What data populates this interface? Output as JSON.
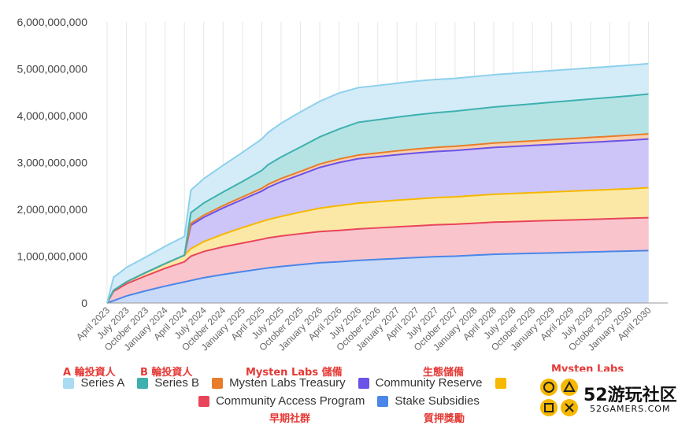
{
  "chart_data": {
    "type": "area",
    "stacked": true,
    "title": "",
    "xlabel": "",
    "ylabel": "",
    "ylim": [
      0,
      6000000000
    ],
    "yticks": [
      "0",
      "1,000,000,000",
      "2,000,000,000",
      "3,000,000,000",
      "4,000,000,000",
      "5,000,000,000",
      "6,000,000,000"
    ],
    "x_tick_labels": [
      "April 2023",
      "July 2023",
      "October 2023",
      "January 2024",
      "April 2024",
      "July 2024",
      "October 2024",
      "January 2025",
      "April 2025",
      "July 2025",
      "October 2025",
      "January 2026",
      "April 2026",
      "July 2026",
      "October 2026",
      "January 2027",
      "April 2027",
      "July 2027",
      "October 2027",
      "January 2028",
      "April 2028",
      "July 2028",
      "October 2028",
      "January 2029",
      "April 2029",
      "July 2029",
      "October 2029",
      "January 2030",
      "April 2030"
    ],
    "x": [
      "2023-04",
      "2023-05",
      "2023-06",
      "2023-07",
      "2023-10",
      "2024-01",
      "2024-04",
      "2024-05",
      "2024-07",
      "2024-10",
      "2025-01",
      "2025-04",
      "2025-05",
      "2025-07",
      "2025-10",
      "2026-01",
      "2026-04",
      "2026-07",
      "2026-10",
      "2027-01",
      "2027-04",
      "2027-07",
      "2027-10",
      "2028-01",
      "2028-04",
      "2028-07",
      "2028-10",
      "2029-01",
      "2029-04",
      "2029-07",
      "2029-10",
      "2030-01",
      "2030-04"
    ],
    "series": [
      {
        "name": "Stake Subsidies",
        "color": "#4a86e8",
        "fill": "#c9daf8",
        "values": [
          0,
          50000000,
          100000000,
          150000000,
          260000000,
          360000000,
          450000000,
          480000000,
          540000000,
          610000000,
          670000000,
          730000000,
          750000000,
          780000000,
          820000000,
          860000000,
          880000000,
          910000000,
          930000000,
          950000000,
          970000000,
          990000000,
          1000000000,
          1020000000,
          1040000000,
          1050000000,
          1060000000,
          1070000000,
          1080000000,
          1090000000,
          1100000000,
          1110000000,
          1120000000
        ]
      },
      {
        "name": "Community Access Program",
        "color": "#e8455a",
        "fill": "#f9c4cc",
        "values": [
          0,
          200000000,
          230000000,
          260000000,
          320000000,
          380000000,
          430000000,
          520000000,
          560000000,
          590000000,
          610000000,
          630000000,
          640000000,
          650000000,
          660000000,
          665000000,
          670000000,
          672000000,
          674000000,
          676000000,
          678000000,
          680000000,
          682000000,
          684000000,
          686000000,
          688000000,
          690000000,
          692000000,
          694000000,
          696000000,
          698000000,
          700000000,
          702000000
        ]
      },
      {
        "name": "",
        "color": "#f6b800",
        "fill": "#fce8a6",
        "values": [
          0,
          20000000,
          30000000,
          40000000,
          70000000,
          100000000,
          140000000,
          160000000,
          210000000,
          270000000,
          330000000,
          380000000,
          390000000,
          420000000,
          460000000,
          500000000,
          530000000,
          550000000,
          560000000,
          570000000,
          575000000,
          580000000,
          585000000,
          590000000,
          595000000,
          600000000,
          605000000,
          610000000,
          615000000,
          620000000,
          625000000,
          630000000,
          640000000
        ]
      },
      {
        "name": "Community Reserve",
        "color": "#6b52e8",
        "fill": "#cdc5f7",
        "values": [
          0,
          0,
          0,
          0,
          0,
          0,
          0,
          500000000,
          520000000,
          560000000,
          600000000,
          650000000,
          690000000,
          740000000,
          800000000,
          870000000,
          920000000,
          950000000,
          960000000,
          970000000,
          980000000,
          985000000,
          990000000,
          995000000,
          1000000000,
          1005000000,
          1010000000,
          1015000000,
          1020000000,
          1025000000,
          1030000000,
          1035000000,
          1040000000
        ]
      },
      {
        "name": "Mysten Labs Treasury",
        "color": "#e87c2a",
        "fill": "#f9cfad",
        "values": [
          0,
          0,
          0,
          0,
          0,
          0,
          0,
          40000000,
          45000000,
          50000000,
          55000000,
          60000000,
          65000000,
          68000000,
          70000000,
          72000000,
          75000000,
          78000000,
          80000000,
          83000000,
          86000000,
          88000000,
          90000000,
          92000000,
          94000000,
          96000000,
          98000000,
          100000000,
          102000000,
          104000000,
          106000000,
          108000000,
          110000000
        ]
      },
      {
        "name": "Series B",
        "color": "#3fb0b0",
        "fill": "#b5e3e3",
        "values": [
          0,
          0,
          0,
          0,
          0,
          0,
          0,
          230000000,
          260000000,
          290000000,
          330000000,
          380000000,
          420000000,
          460000000,
          520000000,
          580000000,
          640000000,
          700000000,
          710000000,
          720000000,
          730000000,
          740000000,
          750000000,
          760000000,
          770000000,
          780000000,
          790000000,
          800000000,
          810000000,
          820000000,
          830000000,
          840000000,
          850000000
        ]
      },
      {
        "name": "Series A",
        "color": "#8dd0ec",
        "fill": "#d3ecf8",
        "values": [
          0,
          280000000,
          290000000,
          310000000,
          330000000,
          370000000,
          400000000,
          480000000,
          520000000,
          570000000,
          620000000,
          670000000,
          690000000,
          720000000,
          750000000,
          760000000,
          770000000,
          740000000,
          730000000,
          725000000,
          720000000,
          710000000,
          700000000,
          695000000,
          690000000,
          685000000,
          680000000,
          675000000,
          670000000,
          665000000,
          660000000,
          655000000,
          650000000
        ]
      }
    ],
    "grid": "vertical",
    "legend_position": "bottom",
    "legend": [
      {
        "label": "Series A",
        "color": "#a9dcf2",
        "note": "A 輪投資人"
      },
      {
        "label": "Series B",
        "color": "#3fb0b0",
        "note": "B 輪投資人"
      },
      {
        "label": "Mysten Labs Treasury",
        "color": "#e87c2a",
        "note": "Mysten Labs 儲備"
      },
      {
        "label": "Community Reserve",
        "color": "#6b52e8",
        "note": "生態儲備"
      },
      {
        "label": "",
        "color": "#f6b800",
        "note": "Mysten Labs"
      },
      {
        "label": "Community Access Program",
        "color": "#e8455a",
        "note": "早期社群"
      },
      {
        "label": "Stake Subsidies",
        "color": "#4a86e8",
        "note": "質押獎勵"
      }
    ]
  },
  "watermark": {
    "text": "52游玩社区",
    "subtext": "52GAMERS.COM"
  }
}
